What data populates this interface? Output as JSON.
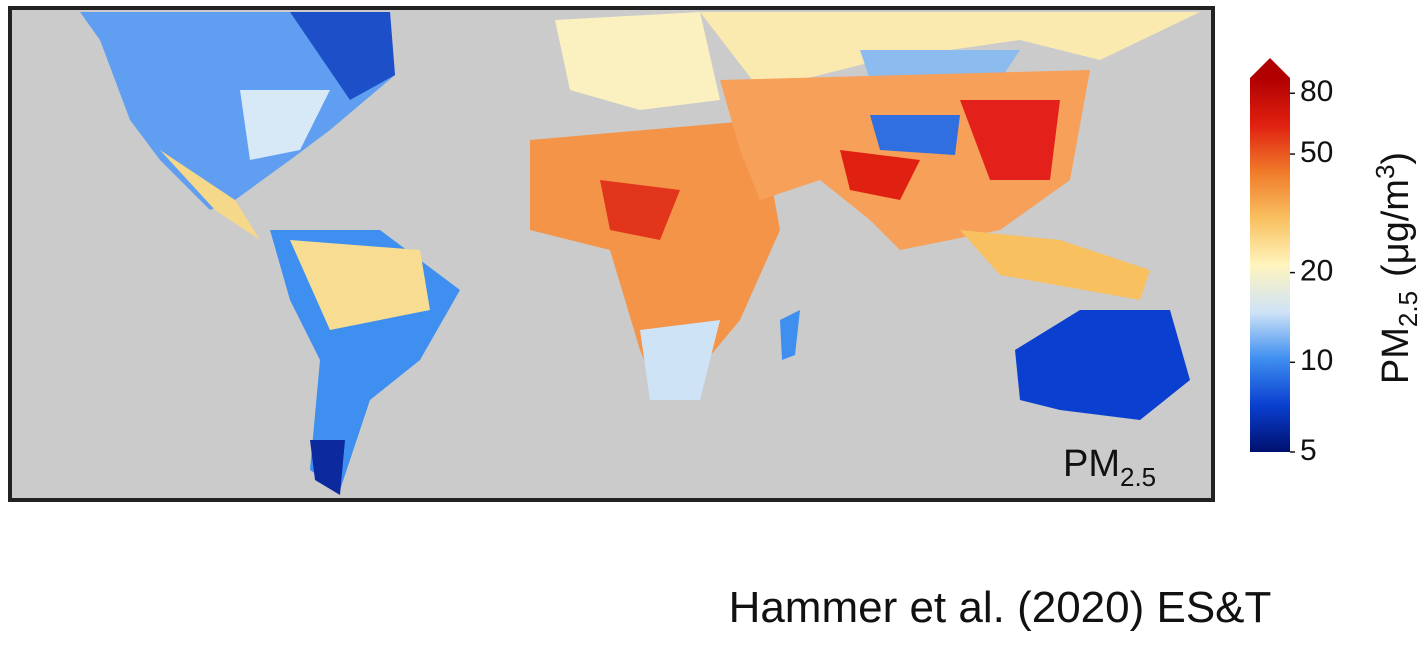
{
  "map": {
    "label": {
      "main": "PM",
      "subscript": "2.5"
    }
  },
  "colorbar": {
    "scale": "log",
    "lim": [
      5,
      90
    ],
    "ticks": [
      5,
      10,
      20,
      50,
      80
    ],
    "colors": [
      "#00106e",
      "#0a3fd0",
      "#3f8ff0",
      "#cfe3f7",
      "#fff4bd",
      "#f9c060",
      "#f07a2a",
      "#e02010",
      "#b00000"
    ],
    "label": {
      "main": "PM",
      "subscript": "2.5",
      "unit_open": "(μg/m",
      "superscript": "3",
      "unit_close": ")"
    }
  },
  "citation": "Hammer et al. (2020) ES&T"
}
